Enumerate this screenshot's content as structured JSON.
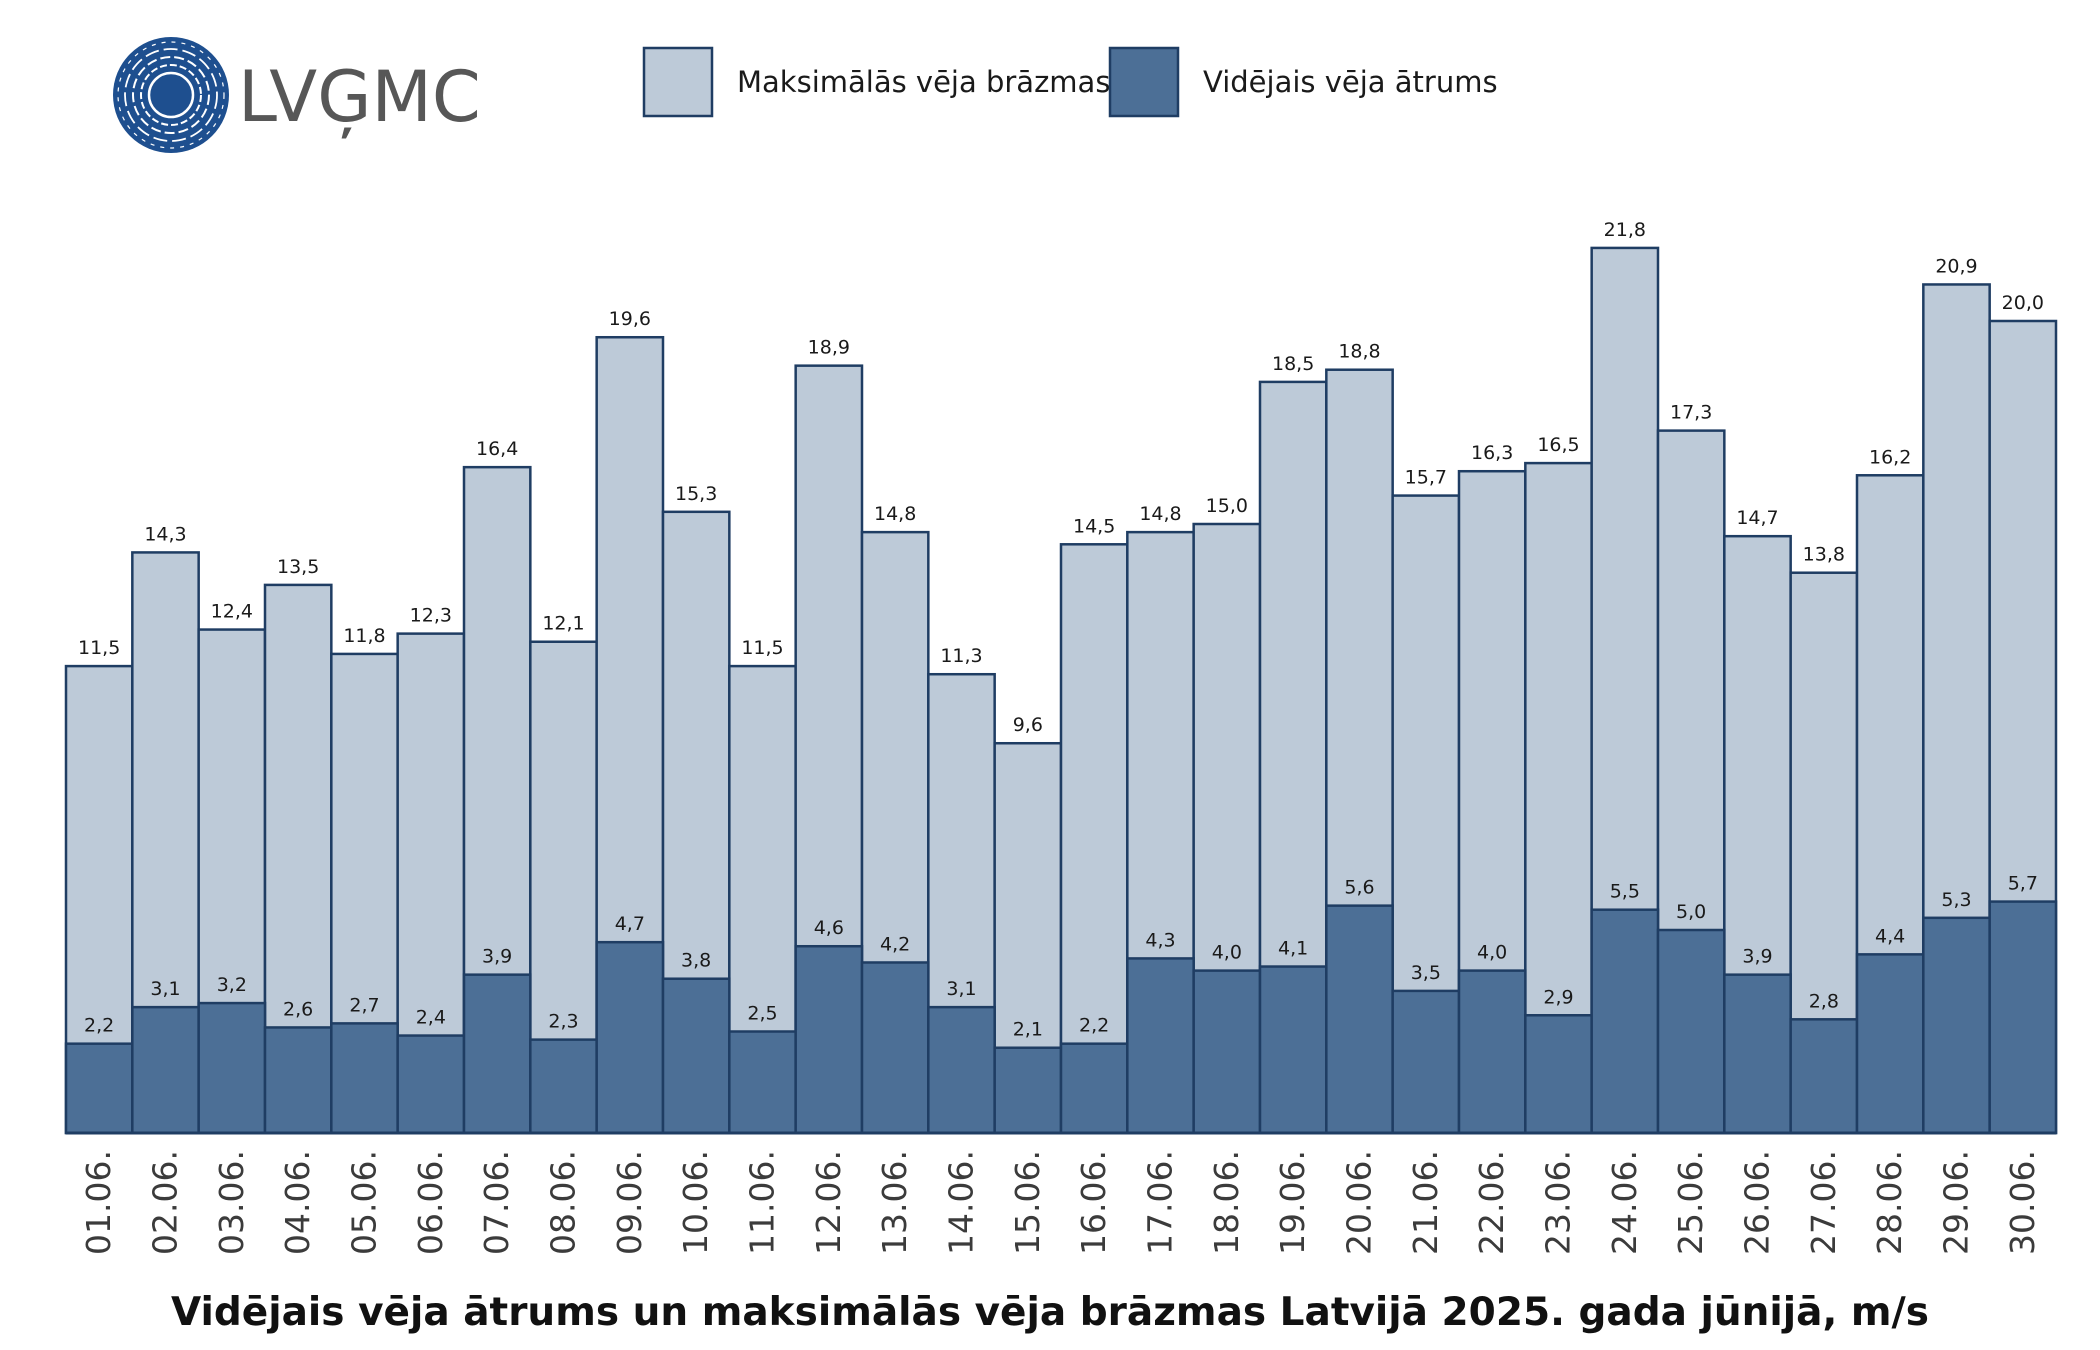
{
  "logo": {
    "text": "LVĢMC",
    "color": "#1e4f8f"
  },
  "legend": {
    "items": [
      {
        "label": "Maksimālās vēja brāzmas",
        "color": "#bdcad8"
      },
      {
        "label": "Vidējais vēja ātrums",
        "color": "#4c6f96"
      }
    ]
  },
  "chart_data": {
    "type": "bar",
    "title": "Vidējais vēja ātrums un maksimālās vēja brāzmas Latvijā 2025. gada jūnijā, m/s",
    "categories": [
      "01.06.",
      "02.06.",
      "03.06.",
      "04.06.",
      "05.06.",
      "06.06.",
      "07.06.",
      "08.06.",
      "09.06.",
      "10.06.",
      "11.06.",
      "12.06.",
      "13.06.",
      "14.06.",
      "15.06.",
      "16.06.",
      "17.06.",
      "18.06.",
      "19.06.",
      "20.06.",
      "21.06.",
      "22.06.",
      "23.06.",
      "24.06.",
      "25.06.",
      "26.06.",
      "27.06.",
      "28.06.",
      "29.06.",
      "30.06."
    ],
    "series": [
      {
        "name": "Maksimālās vēja brāzmas",
        "color": "#bdcad8",
        "values": [
          11.5,
          14.3,
          12.4,
          13.5,
          11.8,
          12.3,
          16.4,
          12.1,
          19.6,
          15.3,
          11.5,
          18.9,
          14.8,
          11.3,
          9.6,
          14.5,
          14.8,
          15.0,
          18.5,
          18.8,
          15.7,
          16.3,
          16.5,
          21.8,
          17.3,
          14.7,
          13.8,
          16.2,
          20.9,
          20.0
        ],
        "labels": [
          "11,5",
          "14,3",
          "12,4",
          "13,5",
          "11,8",
          "12,3",
          "16,4",
          "12,1",
          "19,6",
          "15,3",
          "11,5",
          "18,9",
          "14,8",
          "11,3",
          "9,6",
          "14,5",
          "14,8",
          "15,0",
          "18,5",
          "18,8",
          "15,7",
          "16,3",
          "16,5",
          "21,8",
          "17,3",
          "14,7",
          "13,8",
          "16,2",
          "20,9",
          "20,0"
        ]
      },
      {
        "name": "Vidējais vēja ātrums",
        "color": "#4c6f96",
        "values": [
          2.2,
          3.1,
          3.2,
          2.6,
          2.7,
          2.4,
          3.9,
          2.3,
          4.7,
          3.8,
          2.5,
          4.6,
          4.2,
          3.1,
          2.1,
          2.2,
          4.3,
          4.0,
          4.1,
          5.6,
          3.5,
          4.0,
          2.9,
          5.5,
          5.0,
          3.9,
          2.8,
          4.4,
          5.3,
          5.7
        ],
        "labels": [
          "2,2",
          "3,1",
          "3,2",
          "2,6",
          "2,7",
          "2,4",
          "3,9",
          "2,3",
          "4,7",
          "3,8",
          "2,5",
          "4,6",
          "4,2",
          "3,1",
          "2,1",
          "2,2",
          "4,3",
          "4,0",
          "4,1",
          "5,6",
          "3,5",
          "4,0",
          "2,9",
          "5,5",
          "5,0",
          "3,9",
          "2,8",
          "4,4",
          "5,3",
          "5,7"
        ]
      }
    ],
    "ylim": [
      0,
      23
    ],
    "grid": false,
    "legend_position": "top"
  }
}
